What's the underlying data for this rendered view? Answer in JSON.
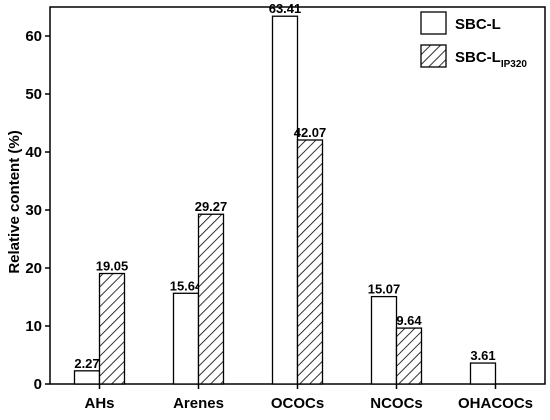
{
  "chart_data": {
    "type": "bar",
    "categories": [
      "AHs",
      "Arenes",
      "OCOCs",
      "NCOCs",
      "OHACOCs"
    ],
    "series": [
      {
        "name": "SBC-L",
        "name_parts": {
          "main": "SBC-L",
          "sub": ""
        },
        "fill": "plain",
        "values": [
          2.27,
          15.64,
          63.41,
          15.07,
          3.61
        ],
        "labels": [
          "2.27",
          "15.64",
          "63.41",
          "15.07",
          "3.61"
        ]
      },
      {
        "name": "SBC-LIP320",
        "name_parts": {
          "main": "SBC-L",
          "sub": "IP320"
        },
        "fill": "hatched",
        "values": [
          19.05,
          29.27,
          42.07,
          9.64,
          null
        ],
        "labels": [
          "19.05",
          "29.27",
          "42.07",
          "9.64",
          null
        ]
      }
    ],
    "ylabel": "Relative content (%)",
    "xlabel": "",
    "ylim": [
      0,
      65
    ],
    "yticks": [
      0,
      10,
      20,
      30,
      40,
      50,
      60
    ],
    "grid": false,
    "legend_position": "top-right",
    "colors": {
      "bar_fill": "#ffffff",
      "stroke": "#000000"
    }
  }
}
